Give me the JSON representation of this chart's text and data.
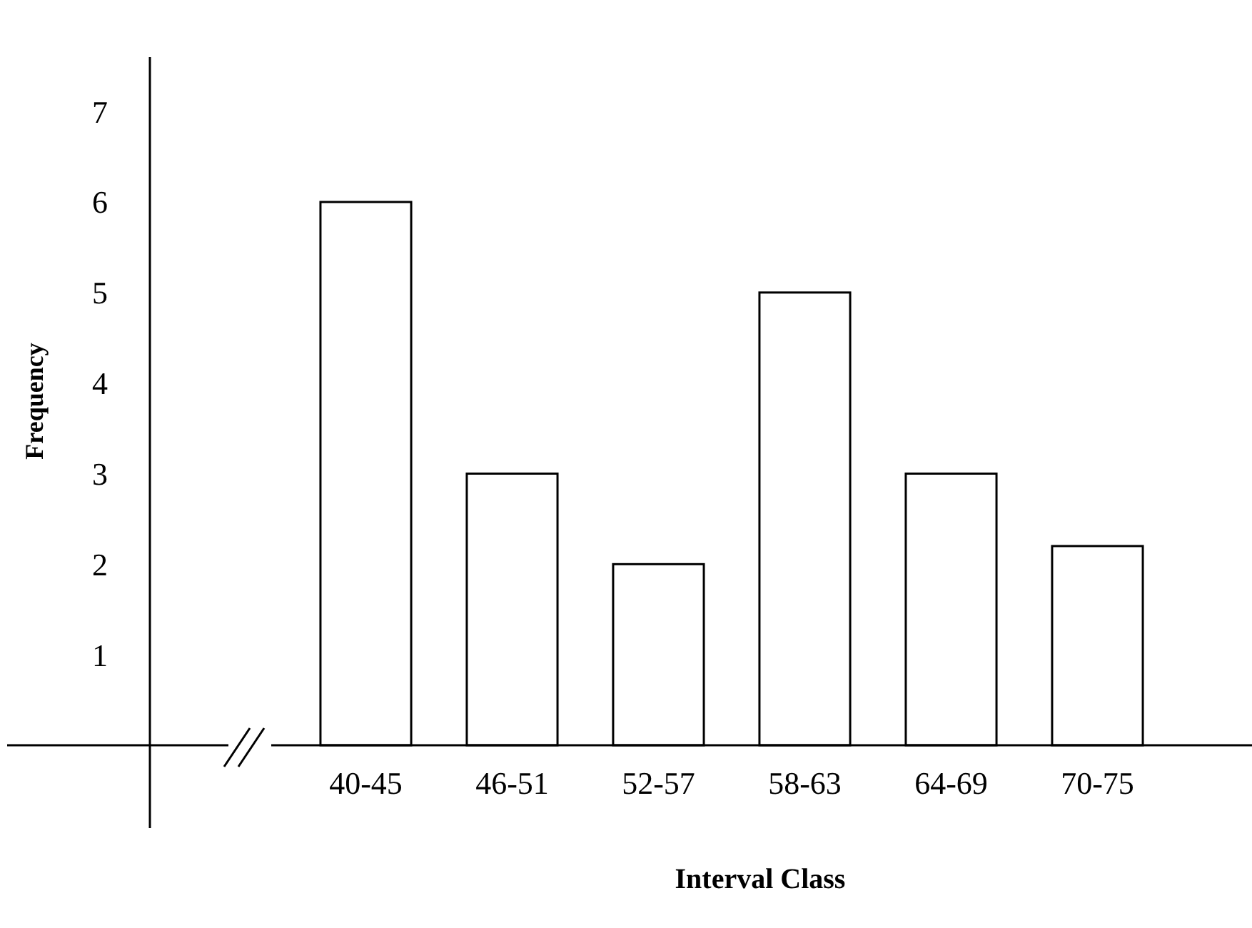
{
  "chart_data": {
    "type": "bar",
    "xlabel": "Interval Class",
    "ylabel": "Frequency",
    "categories": [
      "40-45",
      "46-51",
      "52-57",
      "58-63",
      "64-69",
      "70-75"
    ],
    "values": [
      6,
      3,
      2,
      5,
      3,
      2.2
    ],
    "color": "#ffffff",
    "ylim": [
      0,
      7.6
    ],
    "yticks": [
      1,
      2,
      3,
      4,
      5,
      6,
      7
    ],
    "grid": false
  }
}
